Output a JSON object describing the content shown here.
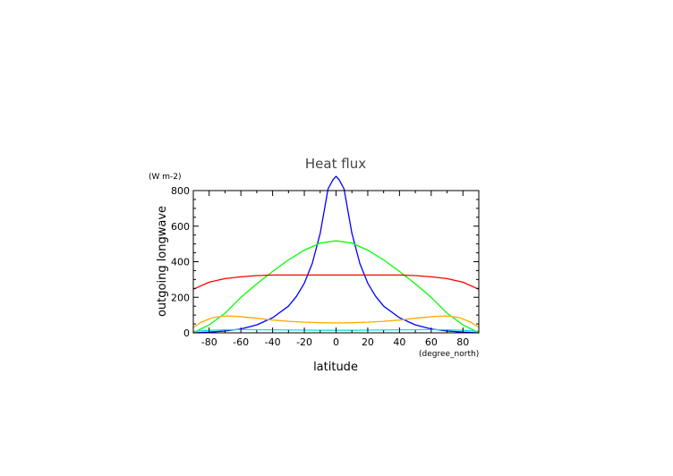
{
  "chart_data": {
    "type": "line",
    "title": "Heat flux",
    "xlabel": "latitude",
    "xunits": "(degree_north)",
    "ylabel": "outgoing longwave",
    "yunits": "(W m-2)",
    "xlim": [
      -90,
      90
    ],
    "ylim": [
      0,
      800
    ],
    "xticks": [
      -80,
      -60,
      -40,
      -20,
      0,
      20,
      40,
      60,
      80
    ],
    "yticks": [
      0,
      200,
      400,
      600,
      800
    ],
    "grid": false,
    "series": [
      {
        "color": "#0000ff",
        "points": [
          [
            -90,
            0
          ],
          [
            -80,
            4
          ],
          [
            -70,
            10
          ],
          [
            -60,
            22
          ],
          [
            -50,
            45
          ],
          [
            -40,
            85
          ],
          [
            -30,
            150
          ],
          [
            -25,
            205
          ],
          [
            -20,
            280
          ],
          [
            -15,
            390
          ],
          [
            -10,
            560
          ],
          [
            -5,
            810
          ],
          [
            -2,
            860
          ],
          [
            0,
            880
          ],
          [
            2,
            860
          ],
          [
            5,
            810
          ],
          [
            10,
            560
          ],
          [
            15,
            390
          ],
          [
            20,
            280
          ],
          [
            25,
            205
          ],
          [
            30,
            150
          ],
          [
            40,
            85
          ],
          [
            50,
            45
          ],
          [
            60,
            22
          ],
          [
            70,
            10
          ],
          [
            80,
            4
          ],
          [
            90,
            0
          ]
        ]
      },
      {
        "color": "#00ff00",
        "points": [
          [
            -90,
            0
          ],
          [
            -80,
            45
          ],
          [
            -70,
            110
          ],
          [
            -60,
            200
          ],
          [
            -50,
            275
          ],
          [
            -40,
            345
          ],
          [
            -30,
            410
          ],
          [
            -20,
            465
          ],
          [
            -10,
            505
          ],
          [
            0,
            517
          ],
          [
            10,
            505
          ],
          [
            20,
            465
          ],
          [
            30,
            410
          ],
          [
            40,
            345
          ],
          [
            50,
            275
          ],
          [
            60,
            200
          ],
          [
            70,
            110
          ],
          [
            80,
            45
          ],
          [
            90,
            0
          ]
        ]
      },
      {
        "color": "#ff0000",
        "points": [
          [
            -90,
            245
          ],
          [
            -80,
            285
          ],
          [
            -70,
            305
          ],
          [
            -60,
            315
          ],
          [
            -50,
            322
          ],
          [
            -40,
            325
          ],
          [
            -30,
            325
          ],
          [
            -20,
            325
          ],
          [
            -10,
            325
          ],
          [
            0,
            325
          ],
          [
            10,
            325
          ],
          [
            20,
            325
          ],
          [
            30,
            325
          ],
          [
            40,
            325
          ],
          [
            50,
            322
          ],
          [
            60,
            315
          ],
          [
            70,
            305
          ],
          [
            80,
            285
          ],
          [
            90,
            245
          ]
        ]
      },
      {
        "color": "#ffaa00",
        "points": [
          [
            -90,
            30
          ],
          [
            -85,
            60
          ],
          [
            -78,
            85
          ],
          [
            -70,
            95
          ],
          [
            -62,
            92
          ],
          [
            -50,
            82
          ],
          [
            -40,
            72
          ],
          [
            -30,
            65
          ],
          [
            -20,
            60
          ],
          [
            -10,
            57
          ],
          [
            0,
            56
          ],
          [
            10,
            57
          ],
          [
            20,
            60
          ],
          [
            30,
            65
          ],
          [
            40,
            72
          ],
          [
            50,
            82
          ],
          [
            62,
            92
          ],
          [
            70,
            95
          ],
          [
            78,
            85
          ],
          [
            85,
            60
          ],
          [
            90,
            30
          ]
        ]
      },
      {
        "color": "#00e5e5",
        "points": [
          [
            -90,
            8
          ],
          [
            -80,
            14
          ],
          [
            -70,
            17
          ],
          [
            -60,
            18
          ],
          [
            -40,
            17
          ],
          [
            -20,
            15
          ],
          [
            0,
            14
          ],
          [
            20,
            15
          ],
          [
            40,
            17
          ],
          [
            60,
            18
          ],
          [
            70,
            17
          ],
          [
            80,
            14
          ],
          [
            90,
            8
          ]
        ]
      }
    ]
  }
}
